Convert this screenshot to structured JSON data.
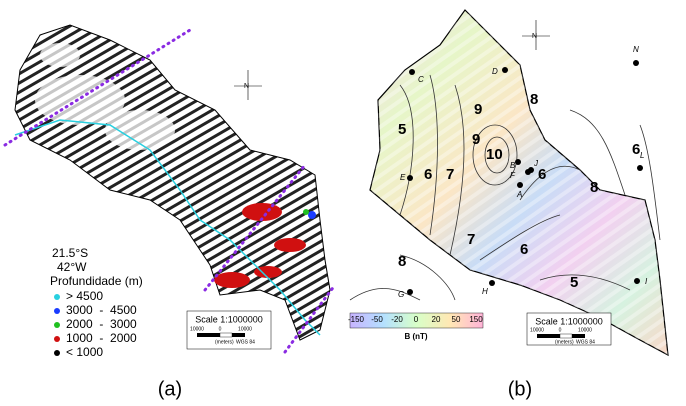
{
  "panel_a": {
    "north": "N",
    "lat_label": "21.5°S",
    "lon_label": "42°W",
    "legend_title": "Profundidade (m)",
    "legend": [
      "> 4500",
      "3000  -  4500",
      "2000  -  3000",
      "1000  -  2000",
      "< 1000"
    ],
    "scale": "Scale 1:1000000",
    "scale_ticks": [
      "10000",
      "0",
      "10000"
    ],
    "scale_units": "(meters)",
    "datum": "WGS 84",
    "caption": "(a)"
  },
  "panel_b": {
    "north": "N",
    "stations": [
      "C",
      "D",
      "N",
      "E",
      "B",
      "F",
      "A",
      "L",
      "J",
      "G",
      "H",
      "I"
    ],
    "contour_labels": [
      "5",
      "6",
      "7",
      "9",
      "10",
      "8",
      "6",
      "6",
      "8",
      "7",
      "6",
      "5",
      "8",
      "9"
    ],
    "colorbar": {
      "ticks": [
        -150,
        -50,
        -20,
        0,
        20,
        50,
        150
      ],
      "label": "B (nT)"
    },
    "scale": "Scale 1:1000000",
    "scale_ticks": [
      "10000",
      "0",
      "10000"
    ],
    "scale_units": "(meters)",
    "datum": "WGS 84",
    "caption": "(b)"
  }
}
